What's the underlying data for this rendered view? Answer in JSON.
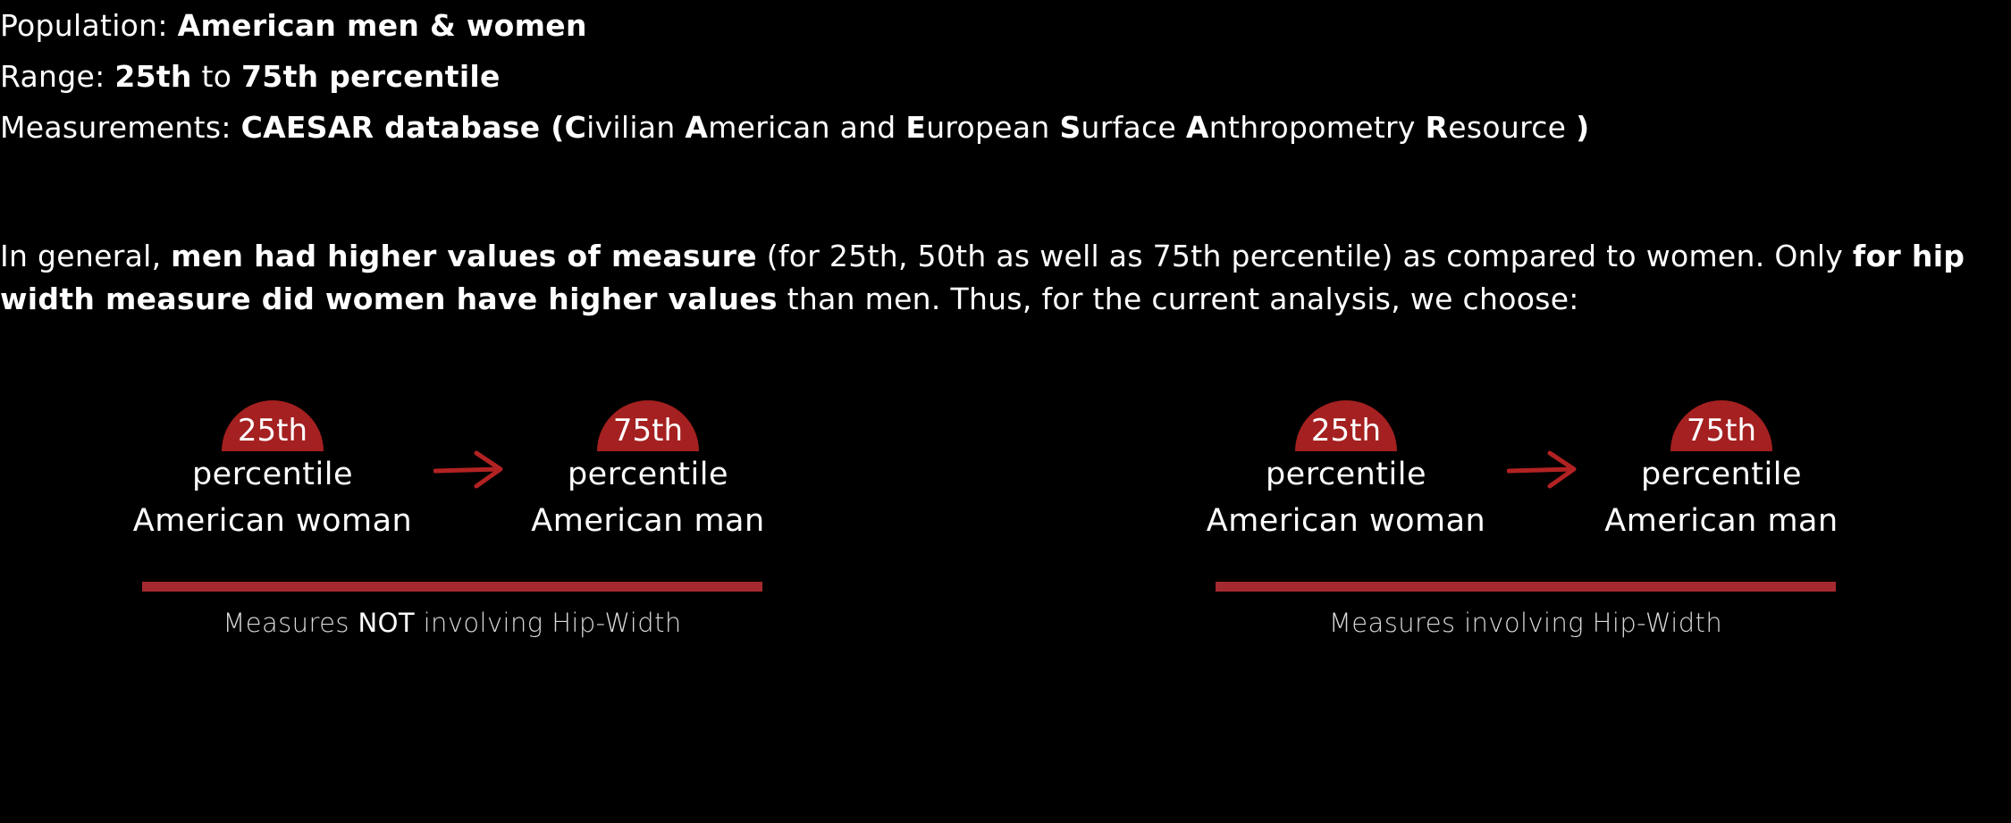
{
  "header": {
    "population_label": "Population:",
    "population_value": "American men & women",
    "range_label": "Range:",
    "range_from": "25th",
    "range_to_word": "to",
    "range_to": "75th percentile",
    "measurements_label": "Measurements:",
    "measurements_db": "CAESAR database (",
    "acr_C": "C",
    "acr_C_rest": "ivilian",
    "acr_A1": "A",
    "acr_A1_rest": "merican and",
    "acr_E": "E",
    "acr_E_rest": "uropean",
    "acr_S": "S",
    "acr_S_rest": "urface",
    "acr_A2": "A",
    "acr_A2_rest": "nthropometry",
    "acr_R": "R",
    "acr_R_rest": "esource",
    "acr_close": ")"
  },
  "paragraph": {
    "p1": "In general,",
    "p2_bold": "men had higher values of measure",
    "p3": "(for 25th, 50th as well as 75th percentile) as compared to women. Only",
    "p4_bold": "for hip width measure did women have higher values",
    "p5": "than men. Thus, for the current analysis, we choose:"
  },
  "diagrams": [
    {
      "from_badge": "25th",
      "from_line1": "percentile",
      "from_line2": "American woman",
      "to_badge": "75th",
      "to_line1": "percentile",
      "to_line2": "American man",
      "caption_pre": "Measures",
      "caption_bold": "NOT",
      "caption_post": "involving Hip-Width"
    },
    {
      "from_badge": "25th",
      "from_line1": "percentile",
      "from_line2": "American woman",
      "to_badge": "75th",
      "to_line1": "percentile",
      "to_line2": "American man",
      "caption_pre": "Measures involving Hip-Width",
      "caption_bold": "",
      "caption_post": ""
    }
  ],
  "colors": {
    "background": "#000000",
    "accent_red": "#a52020",
    "bar_red": "#a52a2f",
    "text": "#ffffff"
  },
  "icons": [
    "arrow-right-icon"
  ]
}
